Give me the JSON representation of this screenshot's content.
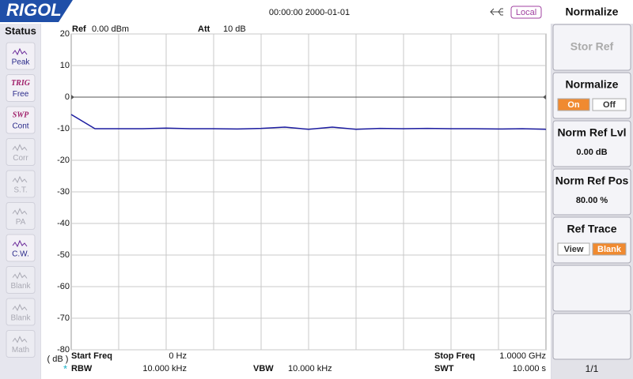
{
  "header": {
    "logo": "RIGOL",
    "datetime": "00:00:00 2000-01-01",
    "remote": "Local"
  },
  "status": {
    "title": "Status",
    "items": [
      {
        "label": "Peak",
        "active": true
      },
      {
        "tag": "TRIG",
        "label": "Free",
        "active": true
      },
      {
        "tag": "SWP",
        "label": "Cont",
        "active": true
      },
      {
        "label": "Corr",
        "active": false
      },
      {
        "label": "S.T.",
        "active": false
      },
      {
        "label": "PA",
        "active": false
      },
      {
        "label": "C.W.",
        "active": true
      },
      {
        "label": "Blank",
        "active": false
      },
      {
        "label": "Blank",
        "active": false
      },
      {
        "label": "Math",
        "active": false
      }
    ]
  },
  "info": {
    "ref": {
      "label": "Ref",
      "value": "0.00 dBm"
    },
    "att": {
      "label": "Att",
      "value": "10 dB"
    },
    "start_freq": {
      "label": "Start Freq",
      "value": "0 Hz"
    },
    "stop_freq": {
      "label": "Stop Freq",
      "value": "1.0000 GHz"
    },
    "rbw": {
      "flag": "*",
      "label": "RBW",
      "value": "10.000 kHz"
    },
    "vbw": {
      "label": "VBW",
      "value": "10.000 kHz"
    },
    "swt": {
      "label": "SWT",
      "value": "10.000 s"
    }
  },
  "chart_data": {
    "type": "line",
    "ylabel": "( dB )",
    "x": [
      0,
      0.05,
      0.1,
      0.15,
      0.2,
      0.25,
      0.3,
      0.35,
      0.4,
      0.45,
      0.5,
      0.55,
      0.6,
      0.65,
      0.7,
      0.75,
      0.8,
      0.85,
      0.9,
      0.95,
      1
    ],
    "values": [
      -5.5,
      -10,
      -10,
      -10,
      -9.8,
      -10,
      -10,
      -10.1,
      -9.9,
      -9.5,
      -10.2,
      -9.5,
      -10.2,
      -9.9,
      -10,
      -9.9,
      -10,
      -10,
      -10.1,
      -10,
      -10.2
    ],
    "color": "#1c1ca0",
    "ref_line": 0,
    "xlim": [
      0,
      1
    ],
    "ylim": [
      -80,
      20
    ],
    "yticks": [
      20,
      10,
      0,
      -10,
      -20,
      -30,
      -40,
      -50,
      -60,
      -70,
      -80
    ],
    "grid": true
  },
  "menu": {
    "title": "Normalize",
    "buttons": [
      {
        "title": "Stor Ref",
        "disabled": true
      },
      {
        "title": "Normalize",
        "options": [
          "On",
          "Off"
        ],
        "selected": 0
      },
      {
        "title": "Norm Ref Lvl",
        "value": "0.00 dB"
      },
      {
        "title": "Norm Ref Pos",
        "value": "80.00 %"
      },
      {
        "title": "Ref Trace",
        "options": [
          "View",
          "Blank"
        ],
        "selected": 1
      }
    ],
    "page": "1/1"
  }
}
